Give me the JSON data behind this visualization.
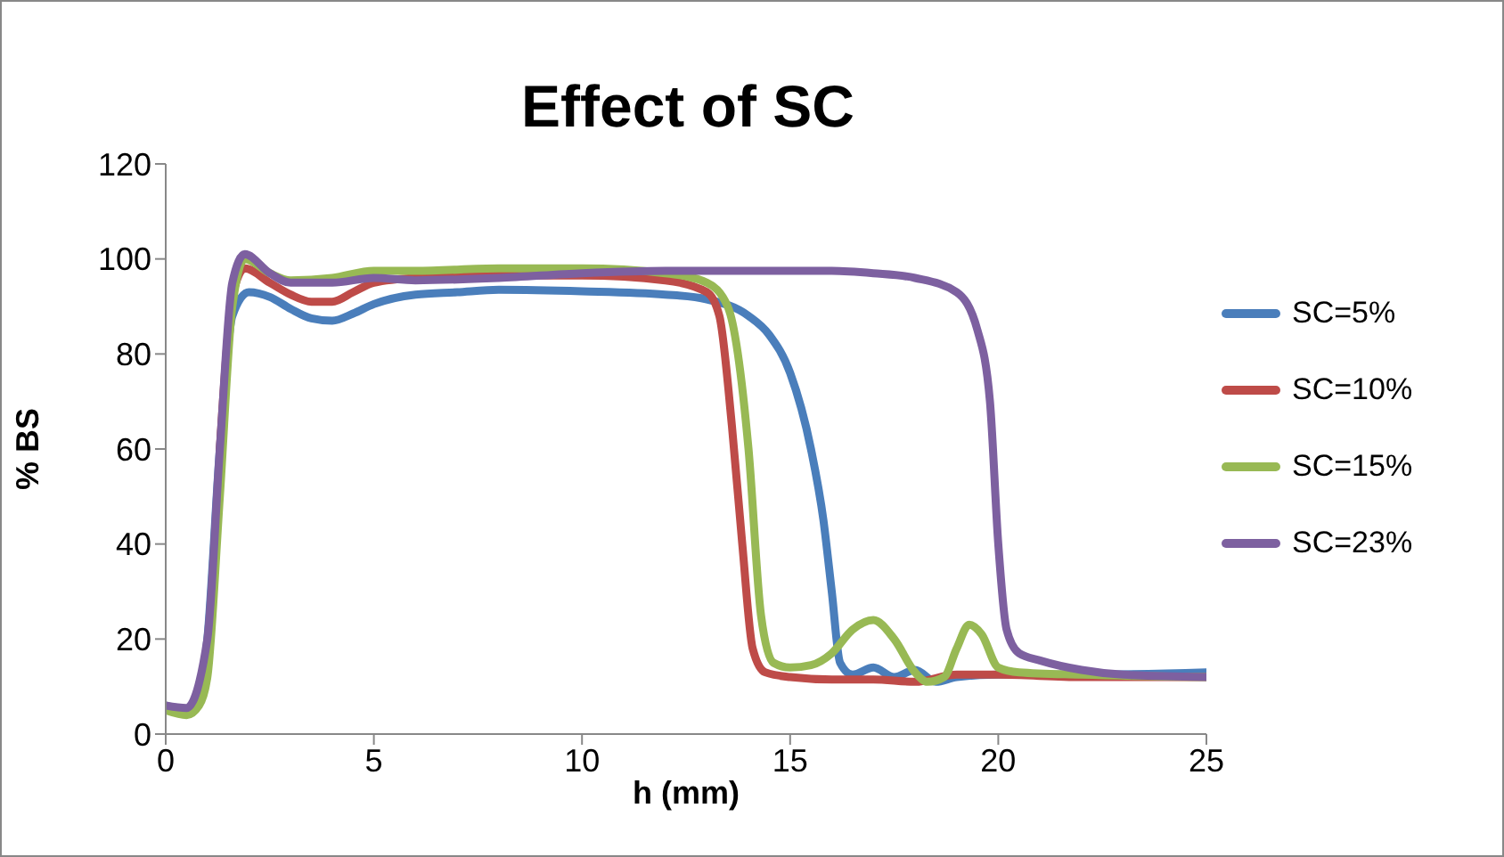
{
  "chart_data": {
    "type": "line",
    "title": "Effect of SC",
    "xlabel": "h (mm)",
    "ylabel": "% BS",
    "xlim": [
      0,
      25
    ],
    "xticks": [
      0,
      5,
      10,
      15,
      20,
      25
    ],
    "ylim": [
      0,
      120
    ],
    "yticks": [
      0,
      20,
      40,
      60,
      80,
      100,
      120
    ],
    "grid": false,
    "legend": "right",
    "marker": "none",
    "line_style": "solid",
    "series": [
      {
        "name": "SC=5%",
        "color": "#4a7ebb",
        "x": [
          0,
          0.5,
          0.8,
          1,
          1.3,
          1.6,
          2,
          2.5,
          3,
          3.5,
          4,
          4.5,
          5,
          6,
          7,
          8,
          10,
          12,
          13,
          14,
          14.5,
          15,
          15.5,
          15.8,
          16,
          16.2,
          16.5,
          17,
          17.5,
          18,
          18.5,
          19,
          20,
          22,
          25
        ],
        "values": [
          6,
          5,
          8,
          20,
          60,
          88,
          93,
          92,
          89.5,
          87.5,
          87,
          88.5,
          90.5,
          92.5,
          93,
          93.5,
          93.2,
          92.5,
          91.5,
          88,
          84,
          76,
          60,
          45,
          30,
          15,
          12.5,
          14,
          12,
          13.5,
          11,
          12,
          12.5,
          12.5,
          13
        ]
      },
      {
        "name": "SC=10%",
        "color": "#be4b48",
        "x": [
          1.3,
          1.6,
          1.9,
          2.5,
          3,
          3.5,
          4,
          4.5,
          5,
          6,
          8,
          10,
          12,
          13,
          13.3,
          13.6,
          13.85,
          14.1,
          14.4,
          15,
          16,
          17,
          18,
          19,
          20,
          22,
          25
        ],
        "values": [
          60,
          92,
          98,
          95,
          92.5,
          91,
          91,
          93,
          95,
          96,
          96.5,
          96.5,
          95.5,
          93,
          88,
          65,
          40,
          18,
          13,
          12,
          11.5,
          11.5,
          11,
          12.5,
          12.5,
          12,
          12
        ]
      },
      {
        "name": "SC=15%",
        "color": "#98b954",
        "x": [
          0,
          0.5,
          0.8,
          1,
          1.3,
          1.6,
          1.9,
          2.5,
          3,
          4,
          5,
          6,
          8,
          10,
          12,
          13,
          13.5,
          14,
          14.3,
          14.6,
          15,
          15.5,
          16,
          16.5,
          17,
          17.5,
          18,
          18.3,
          18.7,
          19,
          19.3,
          19.6,
          20,
          20.5,
          22,
          25
        ],
        "values": [
          5,
          4,
          6,
          12,
          50,
          90,
          100,
          97,
          95.5,
          96,
          97.5,
          97.5,
          98,
          98,
          97,
          95,
          90,
          60,
          25,
          15,
          14,
          14.5,
          17,
          22,
          24,
          20,
          13,
          11,
          12,
          18,
          23,
          21,
          14,
          13,
          12.5,
          12
        ]
      },
      {
        "name": "SC=23%",
        "color": "#7d60a0",
        "x": [
          0,
          0.5,
          1,
          1.3,
          1.6,
          1.9,
          2.5,
          3,
          4,
          5,
          6,
          8,
          10,
          12,
          15,
          16,
          17,
          18,
          19,
          19.5,
          19.8,
          20,
          20.2,
          20.5,
          21,
          22,
          23,
          25
        ],
        "values": [
          6,
          5.5,
          20,
          60,
          95,
          101,
          97,
          95,
          95,
          96,
          95.5,
          96,
          97,
          97.5,
          97.5,
          97.5,
          97,
          96,
          93,
          85,
          70,
          40,
          22,
          17,
          15.5,
          13.5,
          12.5,
          12
        ]
      }
    ]
  }
}
